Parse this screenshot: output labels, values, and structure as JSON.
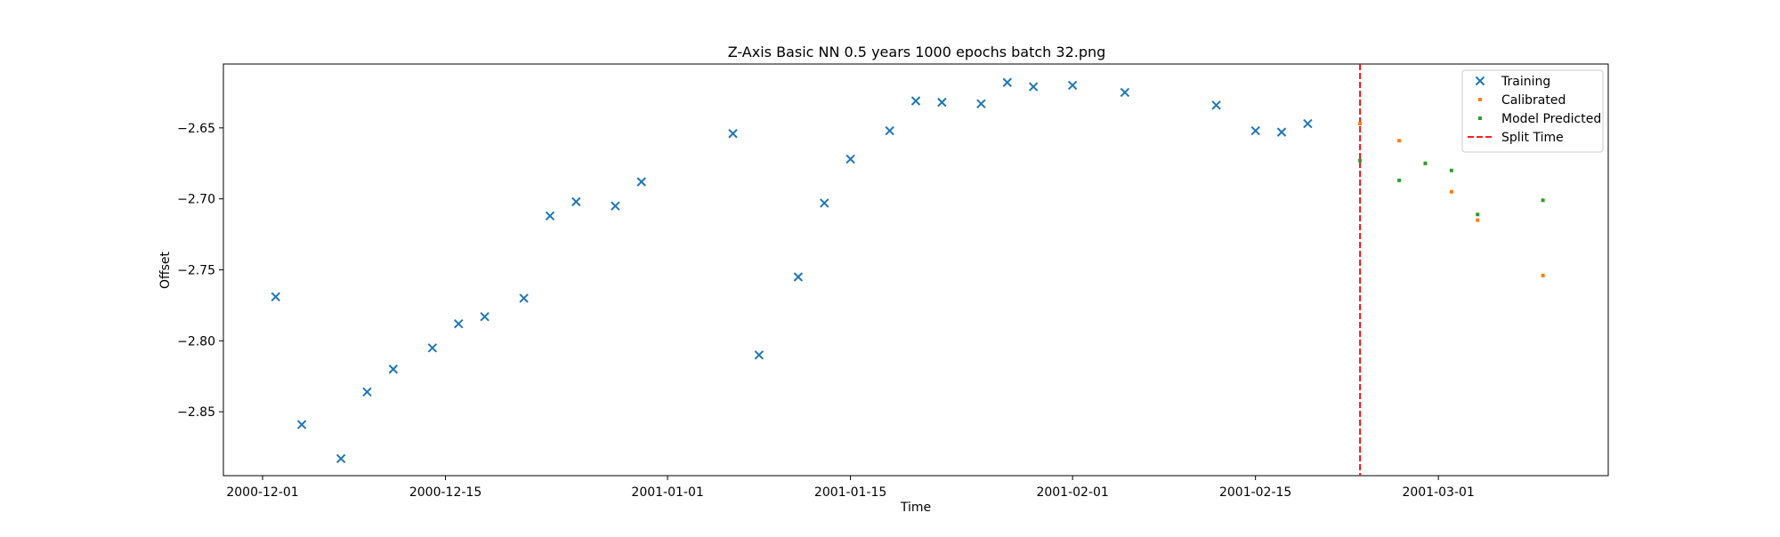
{
  "chart_data": {
    "type": "scatter",
    "title": "Z-Axis Basic NN 0.5 years 1000 epochs batch 32.png",
    "xlabel": "Time",
    "ylabel": "Offset",
    "x_axis_type": "date",
    "xlim": [
      "2000-11-28",
      "2001-03-14"
    ],
    "ylim": [
      -2.895,
      -2.605
    ],
    "x_ticks": [
      "2000-12-01",
      "2000-12-15",
      "2001-01-01",
      "2001-01-15",
      "2001-02-01",
      "2001-02-15",
      "2001-03-01"
    ],
    "y_ticks": [
      -2.85,
      -2.8,
      -2.75,
      -2.7,
      -2.65
    ],
    "y_tick_labels": [
      "−2.85",
      "−2.80",
      "−2.75",
      "−2.70",
      "−2.65"
    ],
    "grid": false,
    "legend_position": "top-right",
    "split_time": "2001-02-23",
    "series": [
      {
        "name": "Training",
        "marker": "x",
        "color": "#1f77b4",
        "points": [
          {
            "x": "2000-12-02",
            "y": -2.769
          },
          {
            "x": "2000-12-04",
            "y": -2.859
          },
          {
            "x": "2000-12-07",
            "y": -2.883
          },
          {
            "x": "2000-12-09",
            "y": -2.836
          },
          {
            "x": "2000-12-11",
            "y": -2.82
          },
          {
            "x": "2000-12-14",
            "y": -2.805
          },
          {
            "x": "2000-12-16",
            "y": -2.788
          },
          {
            "x": "2000-12-18",
            "y": -2.783
          },
          {
            "x": "2000-12-21",
            "y": -2.77
          },
          {
            "x": "2000-12-23",
            "y": -2.712
          },
          {
            "x": "2000-12-25",
            "y": -2.702
          },
          {
            "x": "2000-12-28",
            "y": -2.705
          },
          {
            "x": "2000-12-30",
            "y": -2.688
          },
          {
            "x": "2001-01-06",
            "y": -2.654
          },
          {
            "x": "2001-01-08",
            "y": -2.81
          },
          {
            "x": "2001-01-11",
            "y": -2.755
          },
          {
            "x": "2001-01-13",
            "y": -2.703
          },
          {
            "x": "2001-01-15",
            "y": -2.672
          },
          {
            "x": "2001-01-18",
            "y": -2.652
          },
          {
            "x": "2001-01-20",
            "y": -2.631
          },
          {
            "x": "2001-01-22",
            "y": -2.632
          },
          {
            "x": "2001-01-25",
            "y": -2.633
          },
          {
            "x": "2001-01-27",
            "y": -2.618
          },
          {
            "x": "2001-01-29",
            "y": -2.621
          },
          {
            "x": "2001-02-01",
            "y": -2.62
          },
          {
            "x": "2001-02-05",
            "y": -2.625
          },
          {
            "x": "2001-02-12",
            "y": -2.634
          },
          {
            "x": "2001-02-15",
            "y": -2.652
          },
          {
            "x": "2001-02-17",
            "y": -2.653
          },
          {
            "x": "2001-02-19",
            "y": -2.647
          }
        ]
      },
      {
        "name": "Calibrated",
        "marker": "dot",
        "color": "#ff7f0e",
        "points": [
          {
            "x": "2001-02-23",
            "y": -2.647
          },
          {
            "x": "2001-02-26",
            "y": -2.659
          },
          {
            "x": "2001-02-28",
            "y": -2.675
          },
          {
            "x": "2001-03-02",
            "y": -2.695
          },
          {
            "x": "2001-03-04",
            "y": -2.715
          },
          {
            "x": "2001-03-09",
            "y": -2.754
          }
        ]
      },
      {
        "name": "Model Predicted",
        "marker": "dot",
        "color": "#2ca02c",
        "points": [
          {
            "x": "2001-02-23",
            "y": -2.673
          },
          {
            "x": "2001-02-26",
            "y": -2.687
          },
          {
            "x": "2001-02-28",
            "y": -2.675
          },
          {
            "x": "2001-03-02",
            "y": -2.68
          },
          {
            "x": "2001-03-04",
            "y": -2.711
          },
          {
            "x": "2001-03-09",
            "y": -2.701
          }
        ]
      }
    ],
    "legend": [
      {
        "label": "Training",
        "marker": "x",
        "color": "#1f77b4"
      },
      {
        "label": "Calibrated",
        "marker": "dot",
        "color": "#ff7f0e"
      },
      {
        "label": "Model Predicted",
        "marker": "dot",
        "color": "#2ca02c"
      },
      {
        "label": "Split Time",
        "marker": "dashed-line",
        "color": "#ff0000"
      }
    ]
  }
}
